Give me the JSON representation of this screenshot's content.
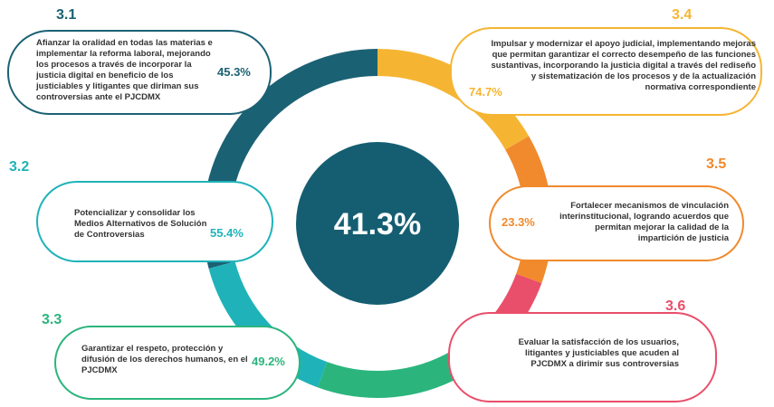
{
  "center": {
    "value": "41.3%"
  },
  "nodes": [
    {
      "id": "3.1",
      "text": "Afianzar la oralidad en todas las materias e implementar la reforma laboral, mejorando los procesos a través de incorporar la justicia digital en beneficio de los justiciables y litigantes que diriman sus controversias ante el PJCDMX",
      "value": "45.3%"
    },
    {
      "id": "3.2",
      "text": "Potencializar y consolidar los Medios Alternativos de Solución de Controversias",
      "value": "55.4%"
    },
    {
      "id": "3.3",
      "text": "Garantizar el respeto, protección y difusión de los derechos humanos, en el PJCDMX",
      "value": "49.2%"
    },
    {
      "id": "3.4",
      "text": "Impulsar y modernizar el apoyo judicial, implementando mejoras que permitan garantizar el correcto desempeño de las funciones sustantivas, incorporando la justicia digital a través del rediseño y sistematización de los procesos y de la actualización normativa correspondiente",
      "value": "74.7%"
    },
    {
      "id": "3.5",
      "text": "Fortalecer mecanismos de vinculación interinstitucional, logrando acuerdos que permitan mejorar la calidad de la impartición de justicia",
      "value": "23.3%"
    },
    {
      "id": "3.6",
      "text": "Evaluar la satisfacción de los usuarios, litigantes y justiciables que acuden al PJCDMX a dirimir sus controversias",
      "value": ""
    }
  ]
}
